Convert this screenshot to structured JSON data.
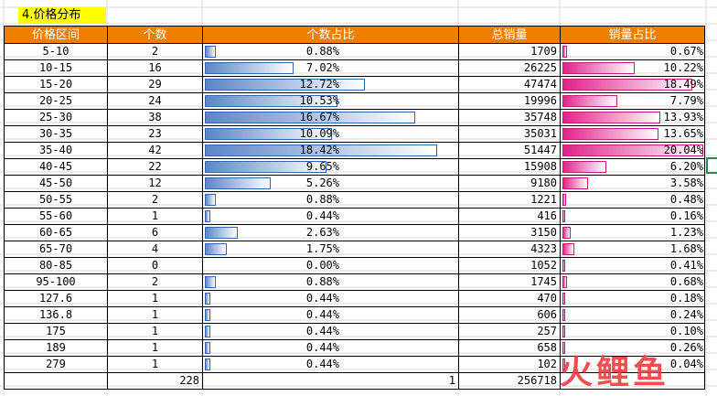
{
  "title": "4.价格分布",
  "headers": [
    "价格区间",
    "个数",
    "个数占比",
    "总销量",
    "销量占比"
  ],
  "rows": [
    {
      "range": "5-10",
      "count": "2",
      "count_pct": "0.88%",
      "count_frac": 0.0088,
      "sales": "1709",
      "sales_pct": "0.67%",
      "sales_frac": 0.0067
    },
    {
      "range": "10-15",
      "count": "16",
      "count_pct": "7.02%",
      "count_frac": 0.0702,
      "sales": "26225",
      "sales_pct": "10.22%",
      "sales_frac": 0.1022
    },
    {
      "range": "15-20",
      "count": "29",
      "count_pct": "12.72%",
      "count_frac": 0.1272,
      "sales": "47474",
      "sales_pct": "18.49%",
      "sales_frac": 0.1849
    },
    {
      "range": "20-25",
      "count": "24",
      "count_pct": "10.53%",
      "count_frac": 0.1053,
      "sales": "19996",
      "sales_pct": "7.79%",
      "sales_frac": 0.0779
    },
    {
      "range": "25-30",
      "count": "38",
      "count_pct": "16.67%",
      "count_frac": 0.1667,
      "sales": "35748",
      "sales_pct": "13.93%",
      "sales_frac": 0.1393
    },
    {
      "range": "30-35",
      "count": "23",
      "count_pct": "10.09%",
      "count_frac": 0.1009,
      "sales": "35031",
      "sales_pct": "13.65%",
      "sales_frac": 0.1365
    },
    {
      "range": "35-40",
      "count": "42",
      "count_pct": "18.42%",
      "count_frac": 0.1842,
      "sales": "51447",
      "sales_pct": "20.04%",
      "sales_frac": 0.2004
    },
    {
      "range": "40-45",
      "count": "22",
      "count_pct": "9.65%",
      "count_frac": 0.0965,
      "sales": "15908",
      "sales_pct": "6.20%",
      "sales_frac": 0.062
    },
    {
      "range": "45-50",
      "count": "12",
      "count_pct": "5.26%",
      "count_frac": 0.0526,
      "sales": "9180",
      "sales_pct": "3.58%",
      "sales_frac": 0.0358
    },
    {
      "range": "50-55",
      "count": "2",
      "count_pct": "0.88%",
      "count_frac": 0.0088,
      "sales": "1221",
      "sales_pct": "0.48%",
      "sales_frac": 0.0048
    },
    {
      "range": "55-60",
      "count": "1",
      "count_pct": "0.44%",
      "count_frac": 0.0044,
      "sales": "416",
      "sales_pct": "0.16%",
      "sales_frac": 0.0016
    },
    {
      "range": "60-65",
      "count": "6",
      "count_pct": "2.63%",
      "count_frac": 0.0263,
      "sales": "3150",
      "sales_pct": "1.23%",
      "sales_frac": 0.0123
    },
    {
      "range": "65-70",
      "count": "4",
      "count_pct": "1.75%",
      "count_frac": 0.0175,
      "sales": "4323",
      "sales_pct": "1.68%",
      "sales_frac": 0.0168
    },
    {
      "range": "80-85",
      "count": "0",
      "count_pct": "0.00%",
      "count_frac": 0.0,
      "sales": "1052",
      "sales_pct": "0.41%",
      "sales_frac": 0.0041
    },
    {
      "range": "95-100",
      "count": "2",
      "count_pct": "0.88%",
      "count_frac": 0.0088,
      "sales": "1745",
      "sales_pct": "0.68%",
      "sales_frac": 0.0068
    },
    {
      "range": "127.6",
      "count": "1",
      "count_pct": "0.44%",
      "count_frac": 0.0044,
      "sales": "470",
      "sales_pct": "0.18%",
      "sales_frac": 0.0018
    },
    {
      "range": "136.8",
      "count": "1",
      "count_pct": "0.44%",
      "count_frac": 0.0044,
      "sales": "606",
      "sales_pct": "0.24%",
      "sales_frac": 0.0024
    },
    {
      "range": "175",
      "count": "1",
      "count_pct": "0.44%",
      "count_frac": 0.0044,
      "sales": "257",
      "sales_pct": "0.10%",
      "sales_frac": 0.001
    },
    {
      "range": "189",
      "count": "1",
      "count_pct": "0.44%",
      "count_frac": 0.0044,
      "sales": "658",
      "sales_pct": "0.26%",
      "sales_frac": 0.0026
    },
    {
      "range": "279",
      "count": "1",
      "count_pct": "0.44%",
      "count_frac": 0.0044,
      "sales": "102",
      "sales_pct": "0.04%",
      "sales_frac": 0.0004
    }
  ],
  "totals": {
    "count": "228",
    "count_pct": "1",
    "sales": "256718"
  },
  "bar_max_frac": 0.2004,
  "colors": {
    "header": "#ee7f00",
    "title_fill": "#ffff00",
    "count_bar": "#5b86c6",
    "sales_bar": "#e0238a"
  },
  "watermark_text": "火鲤鱼"
}
